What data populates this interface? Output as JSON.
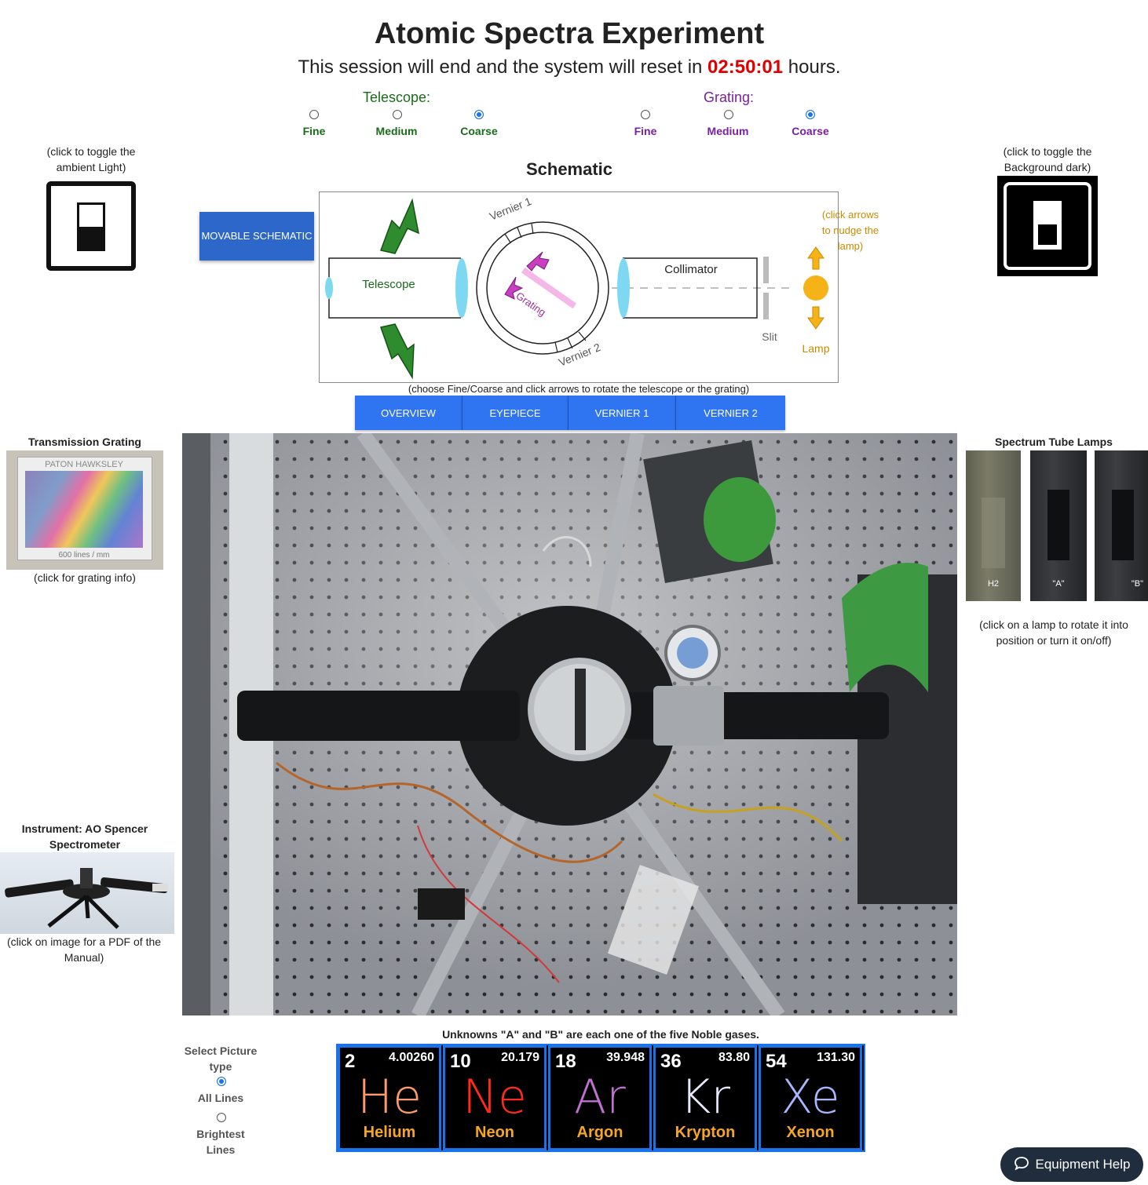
{
  "header": {
    "title": "Atomic Spectra Experiment",
    "session_prefix": "This session will end and the system will reset in ",
    "session_timer": "02:50:01",
    "session_suffix": " hours."
  },
  "telescope": {
    "label": "Telescope:",
    "options": [
      "Fine",
      "Medium",
      "Coarse"
    ],
    "selected": "Coarse",
    "color": "#1a6b1a"
  },
  "grating": {
    "label": "Grating:",
    "options": [
      "Fine",
      "Medium",
      "Coarse"
    ],
    "selected": "Coarse",
    "color": "#7b1fa2"
  },
  "ambient": {
    "hint": "(click to toggle the ambient Light)"
  },
  "background": {
    "hint": "(click to toggle the Background dark)"
  },
  "schematic": {
    "title": "Schematic",
    "movable_button": "MOVABLE SCHEMATIC",
    "telescope_label": "Telescope",
    "collimator_label": "Collimator",
    "grating_label": "Grating",
    "vernier1_label": "Vernier 1",
    "vernier2_label": "Vernier 2",
    "slit_label": "Slit",
    "lamp_label": "Lamp",
    "lamp_hint": "(click arrows to nudge the lamp)",
    "instructions": "(choose Fine/Coarse and click arrows to rotate the telescope or the grating)"
  },
  "tabs": [
    "OVERVIEW",
    "EYEPIECE",
    "VERNIER 1",
    "VERNIER 2"
  ],
  "left_panel": {
    "grating_title": "Transmission Grating",
    "grating_brand": "PATON HAWKSLEY",
    "grating_spec": "600 lines / mm",
    "grating_hint": "(click for grating info)",
    "instrument_title": "Instrument: AO Spencer Spectrometer",
    "instrument_hint": "(click on image for a PDF of the Manual)"
  },
  "right_panel": {
    "lamps_title": "Spectrum Tube Lamps",
    "lamps": [
      "H2",
      "\"A\"",
      "\"B\""
    ],
    "lamps_hint": "(click on a lamp to rotate it into position or turn it on/off)"
  },
  "picture_type": {
    "label": "Select Picture type",
    "options": [
      "All Lines",
      "Brightest Lines"
    ],
    "selected": "All Lines"
  },
  "unknowns": {
    "caption": "Unknowns \"A\" and \"B\" are each one of the five Noble gases.",
    "elements": [
      {
        "number": "2",
        "mass": "4.00260",
        "symbol": "He",
        "name": "Helium",
        "color": "#ff9a6a"
      },
      {
        "number": "10",
        "mass": "20.179",
        "symbol": "Ne",
        "name": "Neon",
        "color": "#ff2a1a"
      },
      {
        "number": "18",
        "mass": "39.948",
        "symbol": "Ar",
        "name": "Argon",
        "color": "#c070d0"
      },
      {
        "number": "36",
        "mass": "83.80",
        "symbol": "Kr",
        "name": "Krypton",
        "color": "#e8e8ff"
      },
      {
        "number": "54",
        "mass": "131.30",
        "symbol": "Xe",
        "name": "Xenon",
        "color": "#a8b8ff"
      }
    ]
  },
  "help": {
    "label": "Equipment Help"
  }
}
